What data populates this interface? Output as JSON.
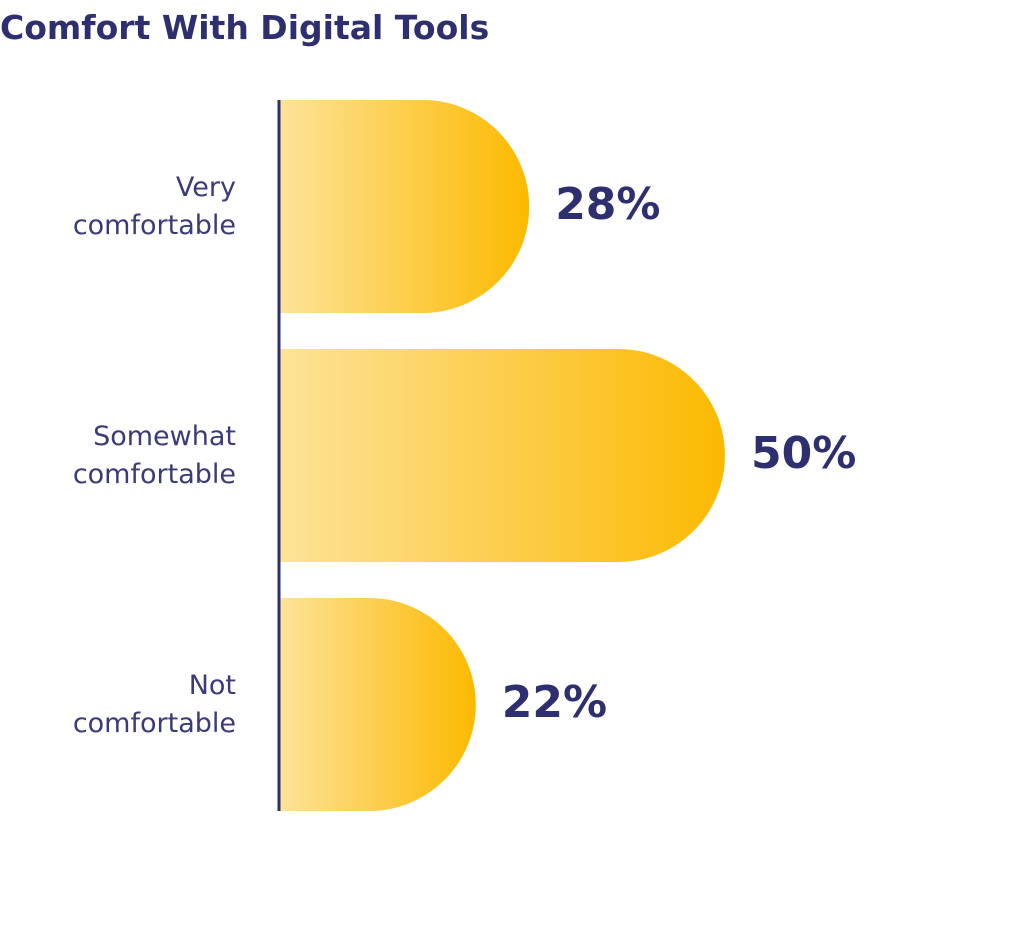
{
  "chart_data": {
    "type": "bar",
    "orientation": "horizontal",
    "title": "Comfort With Digital Tools",
    "categories": [
      "Very comfortable",
      "Somewhat comfortable",
      "Not comfortable"
    ],
    "values": [
      28,
      50,
      22
    ],
    "value_labels": [
      "28%",
      "50%",
      "22%"
    ],
    "color": "#fbb900"
  }
}
